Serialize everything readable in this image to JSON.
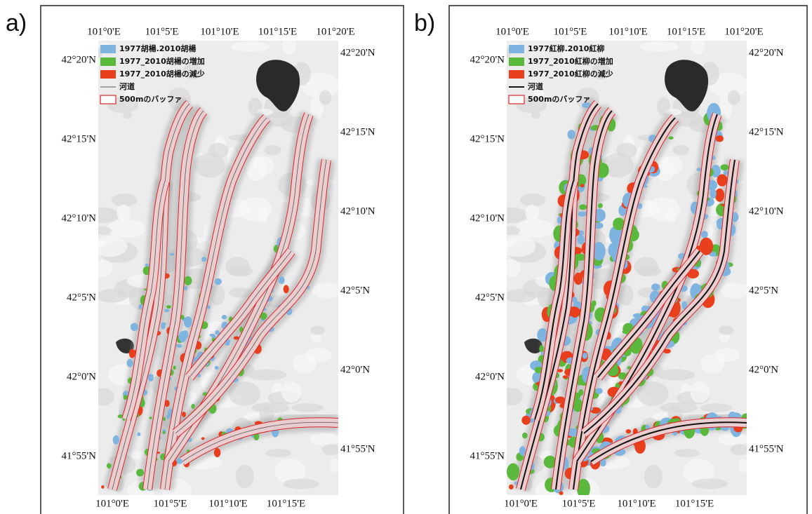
{
  "panels": [
    {
      "label": "a)",
      "top_ticks": [
        "101°0'E",
        "101°5'E",
        "101°10'E",
        "101°15'E",
        "101°20'E"
      ],
      "bottom_ticks": [
        "101°0'E",
        "101°5'E",
        "101°10'E",
        "101°15'E"
      ],
      "left_ticks": [
        "42°20'N",
        "42°15'N",
        "42°10'N",
        "42°5'N",
        "42°0'N",
        "41°55'N"
      ],
      "right_ticks": [
        "42°20'N",
        "42°15'N",
        "42°10'N",
        "42°5'N",
        "42°0'N",
        "41°55'N"
      ],
      "legend": [
        "1977胡楊.2010胡楊",
        "1977_2010胡楊の増加",
        "1977_2010胡楊の減少",
        "河道",
        "500mのバッファ"
      ]
    },
    {
      "label": "b)",
      "top_ticks": [
        "101°0'E",
        "101°5'E",
        "101°10'E",
        "101°15'E",
        "101°20'E"
      ],
      "bottom_ticks": [
        "101°0'E",
        "101°5'E",
        "101°10'E",
        "101°15'E"
      ],
      "left_ticks": [
        "42°20'N",
        "42°15'N",
        "42°10'N",
        "42°5'N",
        "42°0'N",
        "41°55'N"
      ],
      "right_ticks": [
        "42°20'N",
        "42°15'N",
        "42°10'N",
        "42°5'N",
        "42°0'N",
        "41°55'N"
      ],
      "legend": [
        "1977紅柳.2010紅柳",
        "1977_2010紅柳の増加",
        "1977_2010紅柳の減少",
        "河道",
        "500mのバッファ"
      ]
    }
  ]
}
